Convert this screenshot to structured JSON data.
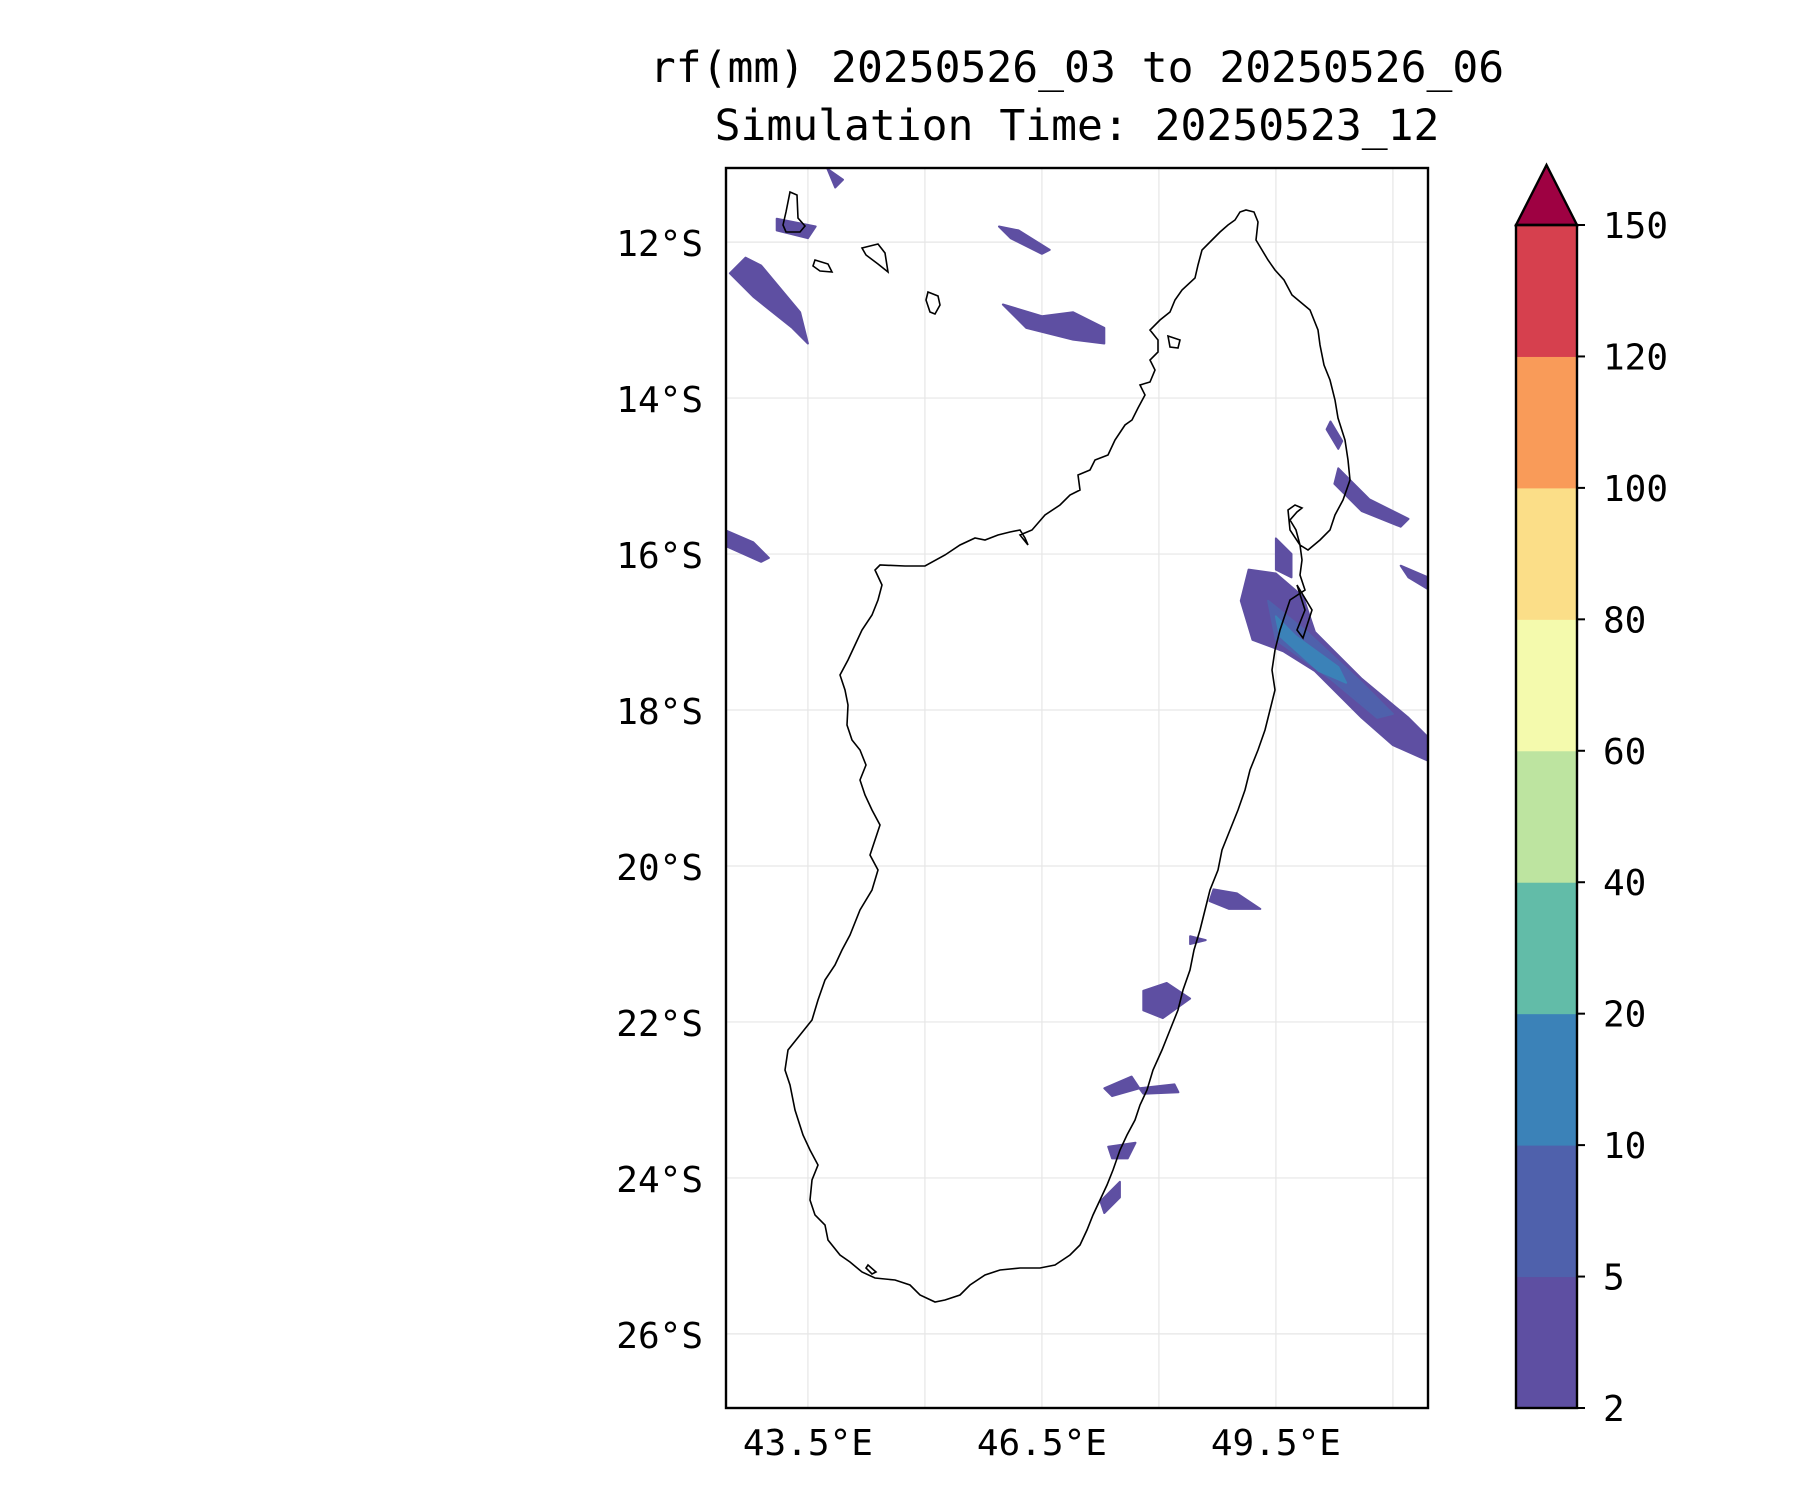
{
  "title": {
    "line1": "rf(mm) 20250526_03 to 20250526_06",
    "line2": "Simulation Time: 20250523_12"
  },
  "map": {
    "lat_range": [
      -26.95,
      -11.05
    ],
    "lon_range": [
      42.45,
      51.45
    ],
    "lat_ticks": [
      {
        "value": -12,
        "label": "12°S"
      },
      {
        "value": -14,
        "label": "14°S"
      },
      {
        "value": -16,
        "label": "16°S"
      },
      {
        "value": -18,
        "label": "18°S"
      },
      {
        "value": -20,
        "label": "20°S"
      },
      {
        "value": -22,
        "label": "22°S"
      },
      {
        "value": -24,
        "label": "24°S"
      },
      {
        "value": -26,
        "label": "26°S"
      }
    ],
    "lon_ticks": [
      {
        "value": 43.5,
        "label": "43.5°E"
      },
      {
        "value": 46.5,
        "label": "46.5°E"
      },
      {
        "value": 49.5,
        "label": "49.5°E"
      }
    ],
    "lon_grid_minor": [
      45,
      48,
      51
    ],
    "grid": true,
    "coastline_color": "#000000"
  },
  "colorbar": {
    "levels": [
      2,
      5,
      10,
      20,
      40,
      60,
      80,
      100,
      120,
      150
    ],
    "colors": [
      "#5e4fa2",
      "#4f61ac",
      "#3b82b8",
      "#62bca8",
      "#bde4a0",
      "#f4faad",
      "#fbde88",
      "#f99b59",
      "#d6404e"
    ],
    "extend_color": "#9e0142",
    "extend": "max",
    "tick_labels": [
      "2",
      "5",
      "10",
      "20",
      "40",
      "60",
      "80",
      "100",
      "120",
      "150"
    ]
  },
  "rain_features": [
    {
      "name": "band-nw-1",
      "color": "#5e4fa2",
      "pts": [
        [
          42.5,
          -12.4
        ],
        [
          42.7,
          -12.2
        ],
        [
          42.9,
          -12.3
        ],
        [
          43.4,
          -12.9
        ],
        [
          43.5,
          -13.3
        ],
        [
          43.3,
          -13.1
        ],
        [
          42.8,
          -12.7
        ]
      ]
    },
    {
      "name": "band-nw-2",
      "color": "#5e4fa2",
      "pts": [
        [
          43.1,
          -11.7
        ],
        [
          43.6,
          -11.8
        ],
        [
          43.5,
          -11.95
        ],
        [
          43.1,
          -11.85
        ]
      ]
    },
    {
      "name": "band-n-1",
      "color": "#5e4fa2",
      "pts": [
        [
          45.95,
          -11.8
        ],
        [
          46.2,
          -11.85
        ],
        [
          46.6,
          -12.1
        ],
        [
          46.5,
          -12.15
        ],
        [
          46.1,
          -11.95
        ]
      ]
    },
    {
      "name": "band-n-2",
      "color": "#5e4fa2",
      "pts": [
        [
          46.0,
          -12.8
        ],
        [
          46.5,
          -12.95
        ],
        [
          46.9,
          -12.9
        ],
        [
          47.3,
          -13.1
        ],
        [
          47.3,
          -13.3
        ],
        [
          46.9,
          -13.25
        ],
        [
          46.3,
          -13.1
        ]
      ]
    },
    {
      "name": "band-n-3",
      "color": "#5e4fa2",
      "pts": [
        [
          43.75,
          -11.06
        ],
        [
          43.95,
          -11.2
        ],
        [
          43.85,
          -11.3
        ]
      ]
    },
    {
      "name": "band-w-coast",
      "color": "#5e4fa2",
      "pts": [
        [
          42.45,
          -15.7
        ],
        [
          42.8,
          -15.85
        ],
        [
          43.0,
          -16.05
        ],
        [
          42.9,
          -16.1
        ],
        [
          42.45,
          -15.9
        ]
      ]
    },
    {
      "name": "band-ne-1",
      "color": "#5e4fa2",
      "pts": [
        [
          50.2,
          -14.3
        ],
        [
          50.35,
          -14.55
        ],
        [
          50.3,
          -14.65
        ],
        [
          50.15,
          -14.4
        ]
      ]
    },
    {
      "name": "band-ne-2",
      "color": "#5e4fa2",
      "pts": [
        [
          50.3,
          -14.9
        ],
        [
          50.7,
          -15.3
        ],
        [
          51.2,
          -15.55
        ],
        [
          51.1,
          -15.65
        ],
        [
          50.6,
          -15.45
        ],
        [
          50.25,
          -15.1
        ]
      ]
    },
    {
      "name": "band-ne-3",
      "color": "#5e4fa2",
      "pts": [
        [
          51.1,
          -16.15
        ],
        [
          51.45,
          -16.3
        ],
        [
          51.45,
          -16.45
        ],
        [
          51.2,
          -16.3
        ]
      ]
    },
    {
      "name": "band-e-main",
      "color": "#5e4fa2",
      "pts": [
        [
          49.15,
          -16.2
        ],
        [
          49.5,
          -16.25
        ],
        [
          49.85,
          -16.55
        ],
        [
          50.0,
          -17.0
        ],
        [
          50.6,
          -17.6
        ],
        [
          51.2,
          -18.1
        ],
        [
          51.45,
          -18.35
        ],
        [
          51.45,
          -18.65
        ],
        [
          51.0,
          -18.45
        ],
        [
          50.6,
          -18.1
        ],
        [
          50.0,
          -17.5
        ],
        [
          49.6,
          -17.25
        ],
        [
          49.2,
          -17.1
        ],
        [
          49.05,
          -16.6
        ]
      ]
    },
    {
      "name": "band-e-core",
      "color": "#4f61ac",
      "pts": [
        [
          49.4,
          -16.6
        ],
        [
          49.9,
          -17.0
        ],
        [
          50.6,
          -17.65
        ],
        [
          51.0,
          -18.05
        ],
        [
          50.8,
          -18.1
        ],
        [
          50.2,
          -17.6
        ],
        [
          49.5,
          -17.1
        ]
      ]
    },
    {
      "name": "band-e-peak",
      "color": "#3b82b8",
      "pts": [
        [
          49.5,
          -16.8
        ],
        [
          49.75,
          -17.05
        ],
        [
          50.3,
          -17.45
        ],
        [
          50.4,
          -17.65
        ],
        [
          50.05,
          -17.5
        ],
        [
          49.55,
          -17.05
        ]
      ]
    },
    {
      "name": "band-e-small-1",
      "color": "#5e4fa2",
      "pts": [
        [
          49.5,
          -15.8
        ],
        [
          49.7,
          -16.0
        ],
        [
          49.7,
          -16.3
        ],
        [
          49.5,
          -16.2
        ]
      ]
    },
    {
      "name": "band-e-small-2",
      "color": "#5e4fa2",
      "pts": [
        [
          48.7,
          -20.3
        ],
        [
          49.0,
          -20.35
        ],
        [
          49.3,
          -20.55
        ],
        [
          48.9,
          -20.55
        ],
        [
          48.65,
          -20.45
        ]
      ]
    },
    {
      "name": "band-e-small-3",
      "color": "#5e4fa2",
      "pts": [
        [
          48.4,
          -20.9
        ],
        [
          48.6,
          -20.95
        ],
        [
          48.4,
          -21.0
        ]
      ]
    },
    {
      "name": "band-se-1",
      "color": "#5e4fa2",
      "pts": [
        [
          47.8,
          -21.6
        ],
        [
          48.1,
          -21.5
        ],
        [
          48.4,
          -21.7
        ],
        [
          48.05,
          -21.95
        ],
        [
          47.8,
          -21.85
        ]
      ]
    },
    {
      "name": "band-se-2",
      "color": "#5e4fa2",
      "pts": [
        [
          47.3,
          -22.85
        ],
        [
          47.65,
          -22.7
        ],
        [
          47.75,
          -22.85
        ],
        [
          47.4,
          -22.95
        ]
      ]
    },
    {
      "name": "band-se-3",
      "color": "#5e4fa2",
      "pts": [
        [
          47.75,
          -22.85
        ],
        [
          48.2,
          -22.8
        ],
        [
          48.25,
          -22.9
        ],
        [
          47.8,
          -22.92
        ]
      ]
    },
    {
      "name": "band-se-4",
      "color": "#5e4fa2",
      "pts": [
        [
          47.35,
          -23.6
        ],
        [
          47.7,
          -23.55
        ],
        [
          47.6,
          -23.75
        ],
        [
          47.4,
          -23.75
        ]
      ]
    },
    {
      "name": "band-se-5",
      "color": "#5e4fa2",
      "pts": [
        [
          47.25,
          -24.3
        ],
        [
          47.5,
          -24.05
        ],
        [
          47.5,
          -24.25
        ],
        [
          47.3,
          -24.45
        ]
      ]
    }
  ]
}
